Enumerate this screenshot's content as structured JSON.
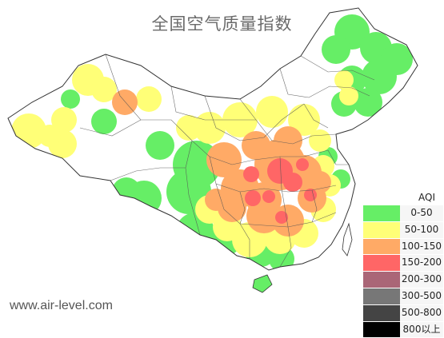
{
  "title": "全国空气质量指数",
  "watermark": "www.air-level.com",
  "legend": {
    "title": "AQI",
    "items": [
      {
        "label": "0-50",
        "color": "#66ee66"
      },
      {
        "label": "50-100",
        "color": "#ffff77"
      },
      {
        "label": "100-150",
        "color": "#ffaa66"
      },
      {
        "label": "150-200",
        "color": "#ff6666"
      },
      {
        "label": "200-300",
        "color": "#aa6677"
      },
      {
        "label": "300-500",
        "color": "#777777"
      },
      {
        "label": "500-800",
        "color": "#444444"
      },
      {
        "label": "800以上",
        "color": "#000000"
      }
    ]
  },
  "colors": {
    "good": "#66ee66",
    "moderate": "#ffff77",
    "unhealthy_sensitive": "#ffaa66",
    "unhealthy": "#ff6666",
    "border": "#333333"
  }
}
